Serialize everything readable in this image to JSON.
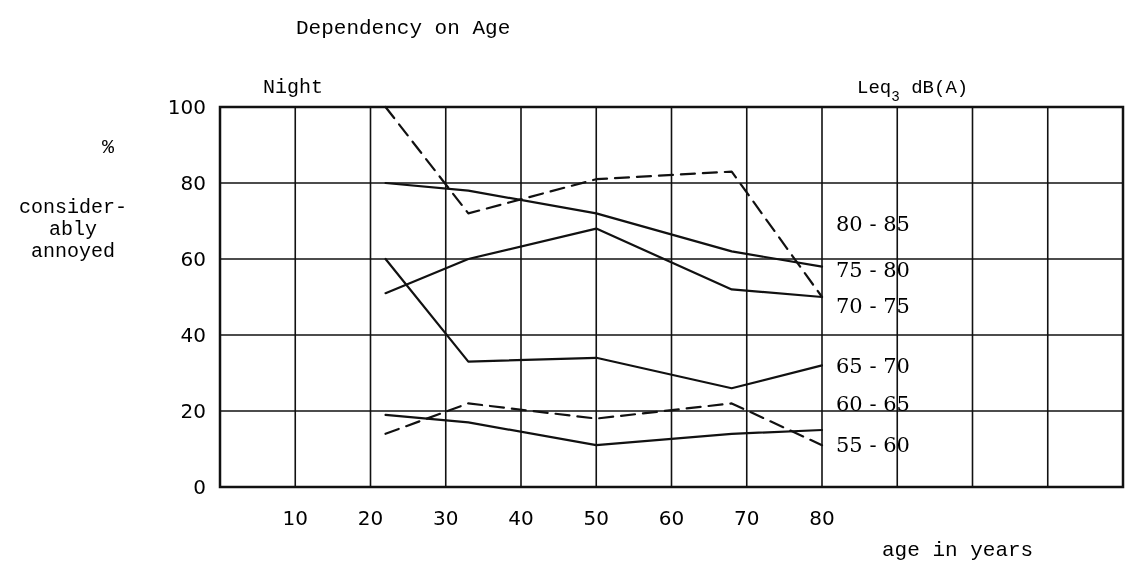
{
  "chart_data": {
    "type": "line",
    "title": "Dependency on Age",
    "subtitle": "Night",
    "ylabel": "%\nconsider-\nably\nannoyed",
    "xlabel": "age in years",
    "legend_title": "Leq$_{3}$  dB(A)",
    "x": [
      22,
      33,
      50,
      68,
      80
    ],
    "series": [
      {
        "color": "#111111",
        "line_style": "dashed",
        "values": [
          100,
          72,
          81,
          83,
          50
        ]
      },
      {
        "color": "#111111",
        "line_style": "solid",
        "values": [
          80,
          78,
          72,
          62,
          58
        ]
      },
      {
        "color": "#111111",
        "line_style": "solid",
        "values": [
          51,
          60,
          68,
          52,
          50
        ]
      },
      {
        "color": "#111111",
        "line_style": "solid",
        "values": [
          60,
          33,
          34,
          26,
          32
        ]
      },
      {
        "color": "#111111",
        "line_style": "dashed",
        "values": [
          14,
          22,
          18,
          22,
          11
        ]
      },
      {
        "color": "#111111",
        "line_style": "solid",
        "values": [
          19,
          17,
          11,
          14,
          15
        ]
      }
    ],
    "annotations": [
      "80 - 85",
      "75 - 80",
      "70 - 75",
      "65 - 70",
      "60 - 65",
      "55 - 60"
    ],
    "xlim": [
      0,
      120
    ],
    "xticks": [
      10,
      20,
      30,
      40,
      50,
      60,
      70,
      80,
      {
        "value": 90,
        "label": null
      },
      {
        "value": 100,
        "label": null
      },
      {
        "value": 110,
        "label": null
      }
    ],
    "ylim": [
      0,
      100
    ],
    "yticks": [
      0,
      20,
      40,
      60,
      80,
      100
    ],
    "grid": true,
    "marker": "none"
  }
}
